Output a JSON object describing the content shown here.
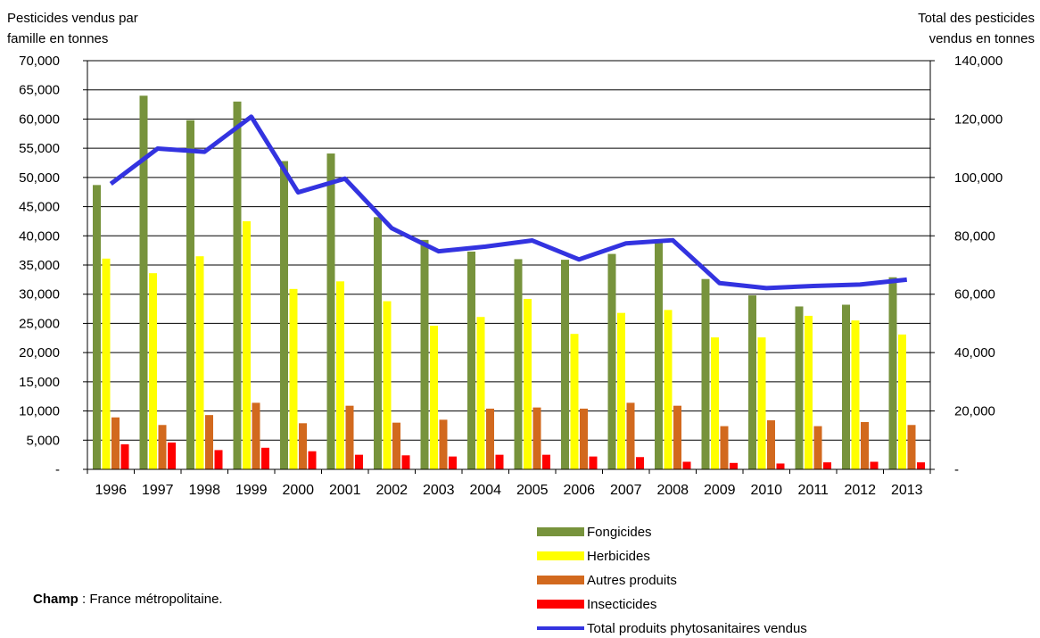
{
  "chart_data": {
    "type": "bar",
    "left_axis_title": [
      "Pesticides vendus par",
      "famille en tonnes"
    ],
    "right_axis_title": [
      "Total des pesticides",
      "vendus en tonnes"
    ],
    "categories": [
      "1996",
      "1997",
      "1998",
      "1999",
      "2000",
      "2001",
      "2002",
      "2003",
      "2004",
      "2005",
      "2006",
      "2007",
      "2008",
      "2009",
      "2010",
      "2011",
      "2012",
      "2013"
    ],
    "ylim_left": [
      0,
      70000
    ],
    "ylim_right": [
      0,
      140000
    ],
    "left_tick_values": [
      0,
      5000,
      10000,
      15000,
      20000,
      25000,
      30000,
      35000,
      40000,
      45000,
      50000,
      55000,
      60000,
      65000,
      70000
    ],
    "left_tick_labels": [
      "-",
      "5,000",
      "10,000",
      "15,000",
      "20,000",
      "25,000",
      "30,000",
      "35,000",
      "40,000",
      "45,000",
      "50,000",
      "55,000",
      "60,000",
      "65,000",
      "70,000"
    ],
    "right_tick_values": [
      0,
      20000,
      40000,
      60000,
      80000,
      100000,
      120000,
      140000
    ],
    "right_tick_labels": [
      "-",
      "20,000",
      "40,000",
      "60,000",
      "80,000",
      "100,000",
      "120,000",
      "140,000"
    ],
    "grid": true,
    "legend_position": "bottom-right",
    "series": [
      {
        "name": "Fongicides",
        "axis": "left",
        "kind": "bar",
        "color": "#77933C",
        "values": [
          48700,
          64000,
          59800,
          63000,
          52800,
          54100,
          43200,
          39300,
          37300,
          36000,
          35900,
          36900,
          39000,
          32600,
          29800,
          27900,
          28200,
          32900
        ]
      },
      {
        "name": "Herbicides",
        "axis": "left",
        "kind": "bar",
        "color": "#FFFF00",
        "values": [
          36100,
          33600,
          36500,
          42500,
          30900,
          32200,
          28800,
          24600,
          26100,
          29200,
          23200,
          26800,
          27300,
          22600,
          22600,
          26300,
          25500,
          23100
        ]
      },
      {
        "name": "Autres produits",
        "axis": "left",
        "kind": "bar",
        "color": "#D2691E",
        "values": [
          8900,
          7600,
          9300,
          11400,
          7900,
          10900,
          8000,
          8500,
          10400,
          10600,
          10400,
          11400,
          10900,
          7400,
          8400,
          7400,
          8100,
          7600
        ]
      },
      {
        "name": "Insecticides",
        "axis": "left",
        "kind": "bar",
        "color": "#FF0000",
        "values": [
          4300,
          4600,
          3300,
          3700,
          3100,
          2500,
          2400,
          2200,
          2500,
          2500,
          2200,
          2100,
          1300,
          1100,
          1000,
          1200,
          1300,
          1200
        ]
      },
      {
        "name": "Total produits phytosanitaires vendus",
        "axis": "right",
        "kind": "line",
        "color": "#3333E0",
        "values": [
          97800,
          109900,
          108800,
          120800,
          94900,
          99600,
          82600,
          74700,
          76300,
          78400,
          71900,
          77400,
          78500,
          63800,
          62100,
          62800,
          63300,
          65000
        ]
      }
    ]
  },
  "note": {
    "label": "Champ",
    "text": " : France métropolitaine."
  }
}
